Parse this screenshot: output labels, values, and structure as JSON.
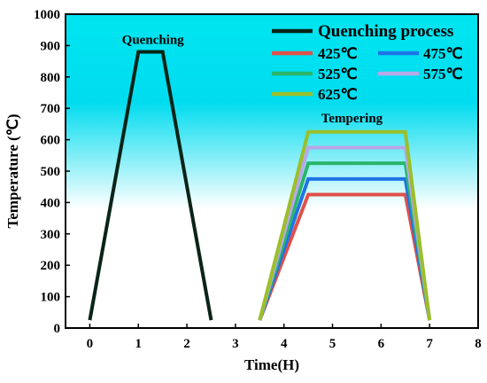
{
  "chart_data": {
    "type": "line",
    "title": "",
    "xlabel": "Time(H)",
    "ylabel": "Temperature (℃)",
    "xlim": [
      -0.5,
      8
    ],
    "ylim": [
      0,
      1000
    ],
    "xticks": [
      0,
      1,
      2,
      3,
      4,
      5,
      6,
      7,
      8
    ],
    "yticks": [
      0,
      100,
      200,
      300,
      400,
      500,
      600,
      700,
      800,
      900,
      1000
    ],
    "grid": false,
    "legend_position": "top-right",
    "background_gradient": [
      "#00e5f0",
      "#ffffff"
    ],
    "annotations": [
      {
        "text": "Quenching",
        "x": 1.3,
        "y": 905
      },
      {
        "text": "Tempering",
        "x": 5.4,
        "y": 655
      }
    ],
    "series": [
      {
        "name": "Quenching process",
        "color": "#0a2417",
        "x": [
          0,
          1,
          1.5,
          2.5
        ],
        "y": [
          25,
          880,
          880,
          25
        ]
      },
      {
        "name": "425℃",
        "color": "#e0504a",
        "x": [
          3.5,
          4.5,
          6.5,
          7
        ],
        "y": [
          25,
          425,
          425,
          25
        ]
      },
      {
        "name": "475℃",
        "color": "#1e74e6",
        "x": [
          3.5,
          4.5,
          6.5,
          7
        ],
        "y": [
          25,
          475,
          475,
          25
        ]
      },
      {
        "name": "525℃",
        "color": "#2bb56a",
        "x": [
          3.5,
          4.5,
          6.5,
          7
        ],
        "y": [
          25,
          525,
          525,
          25
        ]
      },
      {
        "name": "575℃",
        "color": "#b9a7e6",
        "x": [
          3.5,
          4.5,
          6.5,
          7
        ],
        "y": [
          25,
          575,
          575,
          25
        ]
      },
      {
        "name": "625℃",
        "color": "#9bbf2a",
        "x": [
          3.5,
          4.5,
          6.5,
          7
        ],
        "y": [
          25,
          625,
          625,
          25
        ]
      }
    ]
  }
}
